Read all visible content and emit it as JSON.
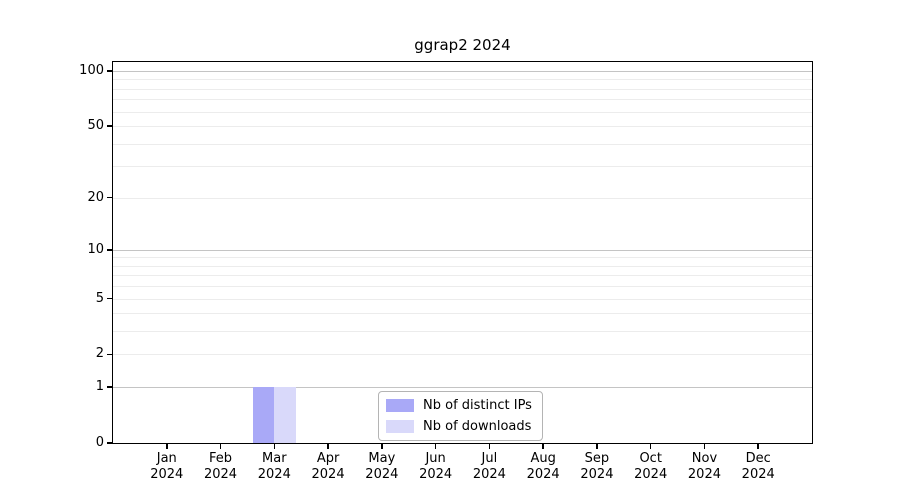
{
  "chart_data": {
    "type": "bar",
    "title": "ggrap2 2024",
    "categories": [
      "Jan 2024",
      "Feb 2024",
      "Mar 2024",
      "Apr 2024",
      "May 2024",
      "Jun 2024",
      "Jul 2024",
      "Aug 2024",
      "Sep 2024",
      "Oct 2024",
      "Nov 2024",
      "Dec 2024"
    ],
    "series": [
      {
        "name": "Nb of distinct IPs",
        "color": "#a9a9f7",
        "values": [
          0,
          0,
          1,
          0,
          0,
          0,
          0,
          0,
          0,
          0,
          0,
          0
        ]
      },
      {
        "name": "Nb of downloads",
        "color": "#d9d9fa",
        "values": [
          0,
          0,
          1,
          0,
          0,
          0,
          0,
          0,
          0,
          0,
          0,
          0
        ]
      }
    ],
    "xlabel": "",
    "ylabel": "",
    "yscale": "log1p",
    "ylim": [
      0,
      112
    ],
    "yticks": [
      0,
      1,
      2,
      5,
      10,
      20,
      50,
      100
    ],
    "yticks_minor": [
      3,
      4,
      6,
      7,
      8,
      9,
      30,
      40,
      60,
      70,
      80,
      90
    ],
    "grid": "horizontal",
    "legend_position": "lower center",
    "colors": {
      "axis": "#000000",
      "major_grid": "#c4c4c4",
      "minor_grid": "#ececec",
      "legend_border": "#b4b4b4",
      "title_text": "#000000",
      "tick_text": "#000000"
    }
  }
}
